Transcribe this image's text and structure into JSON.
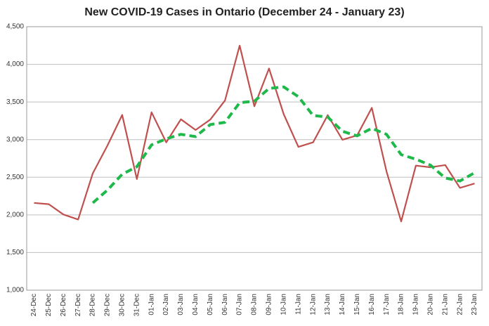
{
  "chart_data": {
    "type": "line",
    "title": "New COVID-19 Cases in Ontario (December 24 - January 23)",
    "categories": [
      "24-Dec",
      "25-Dec",
      "26-Dec",
      "27-Dec",
      "28-Dec",
      "29-Dec",
      "30-Dec",
      "31-Dec",
      "01-Jan",
      "02-Jan",
      "03-Jan",
      "04-Jan",
      "05-Jan",
      "06-Jan",
      "07-Jan",
      "08-Jan",
      "09-Jan",
      "10-Jan",
      "11-Jan",
      "12-Jan",
      "13-Jan",
      "14-Jan",
      "15-Jan",
      "16-Jan",
      "17-Jan",
      "18-Jan",
      "19-Jan",
      "20-Jan",
      "21-Jan",
      "22-Jan",
      "23-Jan"
    ],
    "series": [
      {
        "color": "#c0504d",
        "dashed": false,
        "values": [
          2159,
          2142,
          2005,
          1939,
          2553,
          2923,
          3328,
          2476,
          3363,
          2964,
          3270,
          3128,
          3266,
          3519,
          4249,
          3443,
          3945,
          3338,
          2903,
          2964,
          3326,
          2998,
          3056,
          3422,
          2578,
          1913,
          2655,
          2632,
          2662,
          2359,
          2417
        ]
      },
      {
        "color": "#1fb84a",
        "dashed": true,
        "values": [
          null,
          null,
          null,
          null,
          2160,
          2330,
          2540,
          2640,
          2930,
          3010,
          3070,
          3040,
          3200,
          3230,
          3490,
          3510,
          3680,
          3700,
          3570,
          3320,
          3300,
          3110,
          3050,
          3150,
          3070,
          2800,
          2740,
          2660,
          2490,
          2450,
          2560
        ]
      }
    ],
    "ylim": [
      1000,
      4500
    ],
    "yticks": [
      {
        "value": 1000,
        "label": "1,000"
      },
      {
        "value": 1500,
        "label": "1,500"
      },
      {
        "value": 2000,
        "label": "2,000"
      },
      {
        "value": 2500,
        "label": "2,500"
      },
      {
        "value": 3000,
        "label": "3,000"
      },
      {
        "value": 3500,
        "label": "3,500"
      },
      {
        "value": 4000,
        "label": "4,000"
      },
      {
        "value": 4500,
        "label": "4,500"
      }
    ],
    "grid": true
  }
}
